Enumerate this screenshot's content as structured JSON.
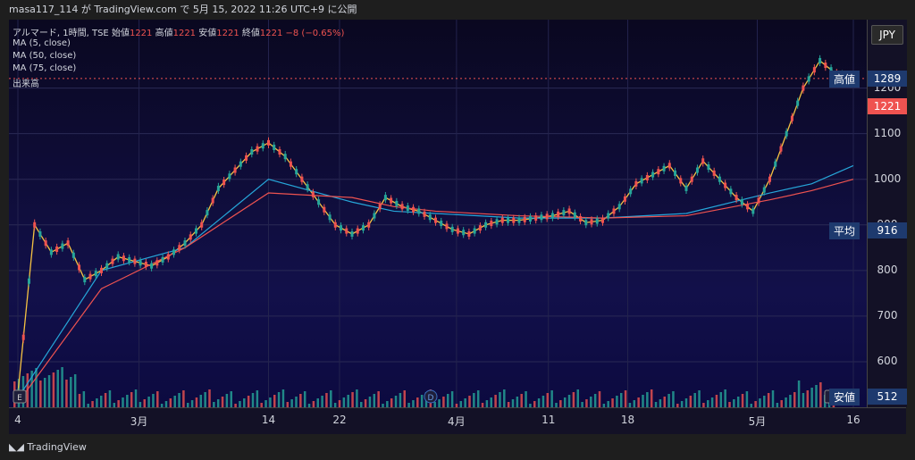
{
  "header": {
    "publish_info": "masa117_114 が TradingView.com で 5月 15, 2022 11:26 UTC+9 に公開"
  },
  "legend": {
    "symbol": "アルマード, 1時間, TSE",
    "open_label": "始値",
    "open": "1221",
    "high_label": "高値",
    "high": "1221",
    "low_label": "安値",
    "low": "1221",
    "close_label": "終値",
    "close": "1221",
    "change": "−8 (−0.65%)",
    "ma5": "MA (5, close)",
    "ma50": "MA (50, close)",
    "ma75": "MA (75, close)",
    "volume": "出来高"
  },
  "currency": "JPY",
  "footer": {
    "brand": "TradingView"
  },
  "markers": {
    "e1": "E",
    "d": "D",
    "e2": "E"
  },
  "tags": {
    "high_label": "高値",
    "high_value": "1289",
    "current_value": "1221",
    "avg_label": "平均",
    "avg_value": "916",
    "low_label": "安値",
    "low_value": "512"
  },
  "colors": {
    "up": "#26a69a",
    "down": "#ef5350",
    "ma5": "#f5c242",
    "ma50": "#26a6d9",
    "ma75": "#ef5350",
    "current": "#ef5350"
  },
  "chart_data": {
    "type": "line",
    "title": "",
    "y_range": [
      500,
      1350
    ],
    "y_ticks": [
      600,
      700,
      800,
      900,
      1000,
      1100,
      1200
    ],
    "x_ticks": [
      "4",
      "3月",
      "14",
      "22",
      "4月",
      "11",
      "18",
      "5月",
      "16"
    ],
    "series": [
      {
        "name": "MA (5, close)",
        "x": [
          0,
          2,
          4,
          6,
          8,
          10,
          12,
          14,
          16,
          18,
          20,
          22,
          24,
          26,
          28,
          30,
          32,
          34,
          36,
          38,
          40,
          42,
          44,
          46,
          48,
          50,
          52,
          54,
          56,
          58,
          60,
          62,
          64,
          66,
          68,
          70,
          72,
          74,
          76,
          78,
          80,
          82,
          84,
          86,
          88,
          90,
          92,
          94,
          96,
          98,
          100
        ],
        "values": [
          530,
          900,
          840,
          860,
          780,
          800,
          830,
          820,
          810,
          830,
          860,
          900,
          980,
          1020,
          1060,
          1080,
          1050,
          1000,
          950,
          900,
          880,
          900,
          960,
          940,
          930,
          910,
          890,
          880,
          900,
          910,
          910,
          915,
          920,
          930,
          905,
          910,
          940,
          990,
          1010,
          1030,
          980,
          1040,
          1000,
          960,
          930,
          1000,
          1100,
          1200,
          1260,
          1230,
          1221
        ]
      },
      {
        "name": "MA (50, close)",
        "x": [
          0,
          10,
          20,
          30,
          40,
          45,
          50,
          60,
          70,
          80,
          90,
          95,
          100
        ],
        "values": [
          520,
          800,
          850,
          1000,
          950,
          930,
          925,
          915,
          915,
          925,
          970,
          990,
          1030
        ]
      },
      {
        "name": "MA (75, close)",
        "x": [
          0,
          10,
          20,
          30,
          40,
          45,
          50,
          60,
          70,
          80,
          90,
          95,
          100
        ],
        "values": [
          510,
          760,
          850,
          970,
          960,
          940,
          930,
          920,
          915,
          920,
          955,
          975,
          1000
        ]
      }
    ]
  }
}
